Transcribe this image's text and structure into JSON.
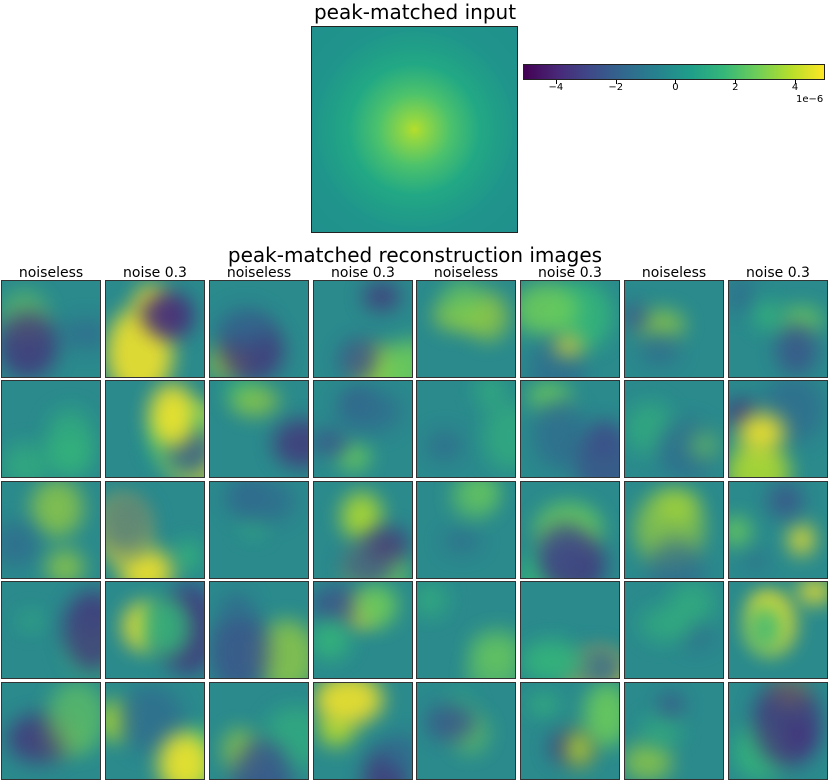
{
  "title": "peak-matched input",
  "subtitle": "peak-matched reconstruction images",
  "colorbar": {
    "colormap": "viridis",
    "ticks": [
      "−4",
      "−2",
      "0",
      "2",
      "4"
    ],
    "tick_values": [
      -4,
      -2,
      0,
      2,
      4
    ],
    "range": [
      -5.1,
      5.0
    ],
    "exponent": "1e−6"
  },
  "column_titles": [
    "noiseless",
    "noise 0.3",
    "noiseless",
    "noise 0.3",
    "noiseless",
    "noise 0.3",
    "noiseless",
    "noise 0.3"
  ],
  "chart_data": {
    "type": "heatmap",
    "title": "peak-matched input",
    "subtitle": "peak-matched reconstruction images",
    "input_image": "centered bright blob, peak about 4e-6, falling smoothly to about 0",
    "grid": {
      "rows": 5,
      "columns": 8,
      "column_titles": [
        "noiseless",
        "noise 0.3",
        "noiseless",
        "noise 0.3",
        "noiseless",
        "noise 0.3",
        "noiseless",
        "noise 0.3"
      ]
    },
    "colorbar_range": [
      -5.1,
      5.0
    ],
    "colorbar_ticks": [
      -4,
      -2,
      0,
      2,
      4
    ],
    "scale_exponent": "1e-6"
  },
  "colors": {
    "viridis": [
      "#440154",
      "#482878",
      "#3e4a89",
      "#31688e",
      "#26828e",
      "#1f9e89",
      "#35b779",
      "#6ece58",
      "#b5de2b",
      "#fde725"
    ],
    "panel_base": "#2a8a8c"
  }
}
